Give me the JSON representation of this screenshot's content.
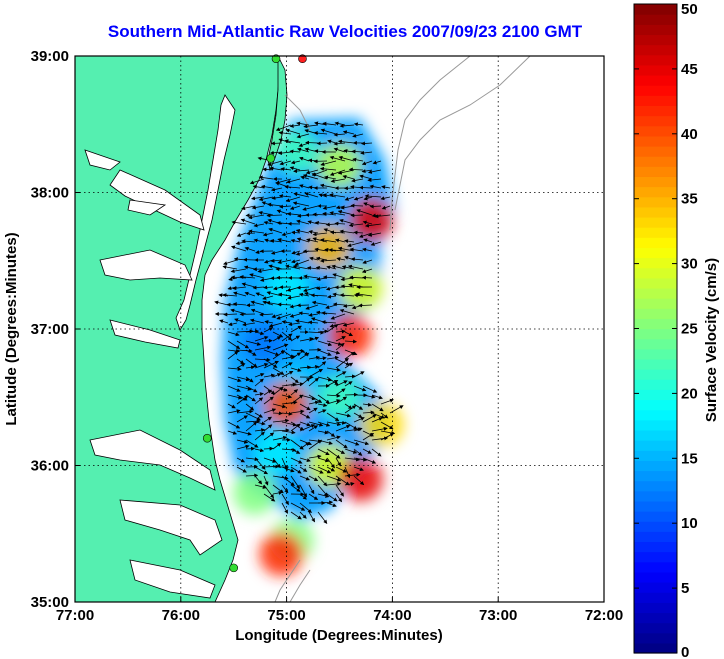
{
  "title": "Southern Mid-Atlantic Raw Velocities 2007/09/23 2100 GMT",
  "chart_data": {
    "type": "vector-field",
    "title": "Southern Mid-Atlantic Raw Velocities 2007/09/23 2100 GMT",
    "xlabel": "Longitude (Degrees:Minutes)",
    "ylabel": "Latitude (Degrees:Minutes)",
    "xlim": [
      -77,
      -72
    ],
    "ylim": [
      35,
      39
    ],
    "x_ticks": [
      {
        "value": -77,
        "label": "77:00"
      },
      {
        "value": -76,
        "label": "76:00"
      },
      {
        "value": -75,
        "label": "75:00"
      },
      {
        "value": -74,
        "label": "74:00"
      },
      {
        "value": -73,
        "label": "73:00"
      },
      {
        "value": -72,
        "label": "72:00"
      }
    ],
    "y_ticks": [
      {
        "value": 35,
        "label": "35:00"
      },
      {
        "value": 36,
        "label": "36:00"
      },
      {
        "value": 37,
        "label": "37:00"
      },
      {
        "value": 38,
        "label": "38:00"
      },
      {
        "value": 39,
        "label": "39:00"
      }
    ],
    "grid": true,
    "colorbar": {
      "label": "Surface Velocity (cm/s)",
      "range": [
        0,
        50
      ],
      "ticks": [
        {
          "value": 0,
          "label": "0"
        },
        {
          "value": 5,
          "label": "5"
        },
        {
          "value": 10,
          "label": "10"
        },
        {
          "value": 15,
          "label": "15"
        },
        {
          "value": 20,
          "label": "20"
        },
        {
          "value": 25,
          "label": "25"
        },
        {
          "value": 30,
          "label": "30"
        },
        {
          "value": 35,
          "label": "35"
        },
        {
          "value": 40,
          "label": "40"
        },
        {
          "value": 45,
          "label": "45"
        },
        {
          "value": 50,
          "label": "50"
        }
      ],
      "colormap": "jet"
    },
    "field_regions": [
      {
        "lon": -74.2,
        "lat": 37.8,
        "speed": 45
      },
      {
        "lon": -74.6,
        "lat": 37.6,
        "speed": 35
      },
      {
        "lon": -74.5,
        "lat": 38.2,
        "speed": 28
      },
      {
        "lon": -74.9,
        "lat": 38.3,
        "speed": 22
      },
      {
        "lon": -74.3,
        "lat": 37.3,
        "speed": 30
      },
      {
        "lon": -74.4,
        "lat": 36.95,
        "speed": 42
      },
      {
        "lon": -75.0,
        "lat": 37.3,
        "speed": 18
      },
      {
        "lon": -75.2,
        "lat": 36.9,
        "speed": 12
      },
      {
        "lon": -74.9,
        "lat": 36.6,
        "speed": 16
      },
      {
        "lon": -75.0,
        "lat": 36.45,
        "speed": 40
      },
      {
        "lon": -74.5,
        "lat": 36.5,
        "speed": 22
      },
      {
        "lon": -74.1,
        "lat": 36.3,
        "speed": 33
      },
      {
        "lon": -75.1,
        "lat": 36.1,
        "speed": 18
      },
      {
        "lon": -74.6,
        "lat": 36.0,
        "speed": 30
      },
      {
        "lon": -74.3,
        "lat": 35.9,
        "speed": 45
      },
      {
        "lon": -75.3,
        "lat": 35.8,
        "speed": 25
      },
      {
        "lon": -74.95,
        "lat": 35.45,
        "speed": 25
      },
      {
        "lon": -75.05,
        "lat": 35.35,
        "speed": 42
      }
    ],
    "stations": [
      {
        "lon": -74.85,
        "lat": 38.98,
        "color": "#ff2020"
      },
      {
        "lon": -75.1,
        "lat": 38.98,
        "color": "#33dd33"
      },
      {
        "lon": -75.15,
        "lat": 38.25,
        "color": "#33dd33"
      },
      {
        "lon": -75.75,
        "lat": 36.2,
        "color": "#33dd33"
      },
      {
        "lon": -75.5,
        "lat": 35.25,
        "color": "#33dd33"
      }
    ],
    "land_color": "#55efb0",
    "ocean_color": "#ffffff"
  }
}
